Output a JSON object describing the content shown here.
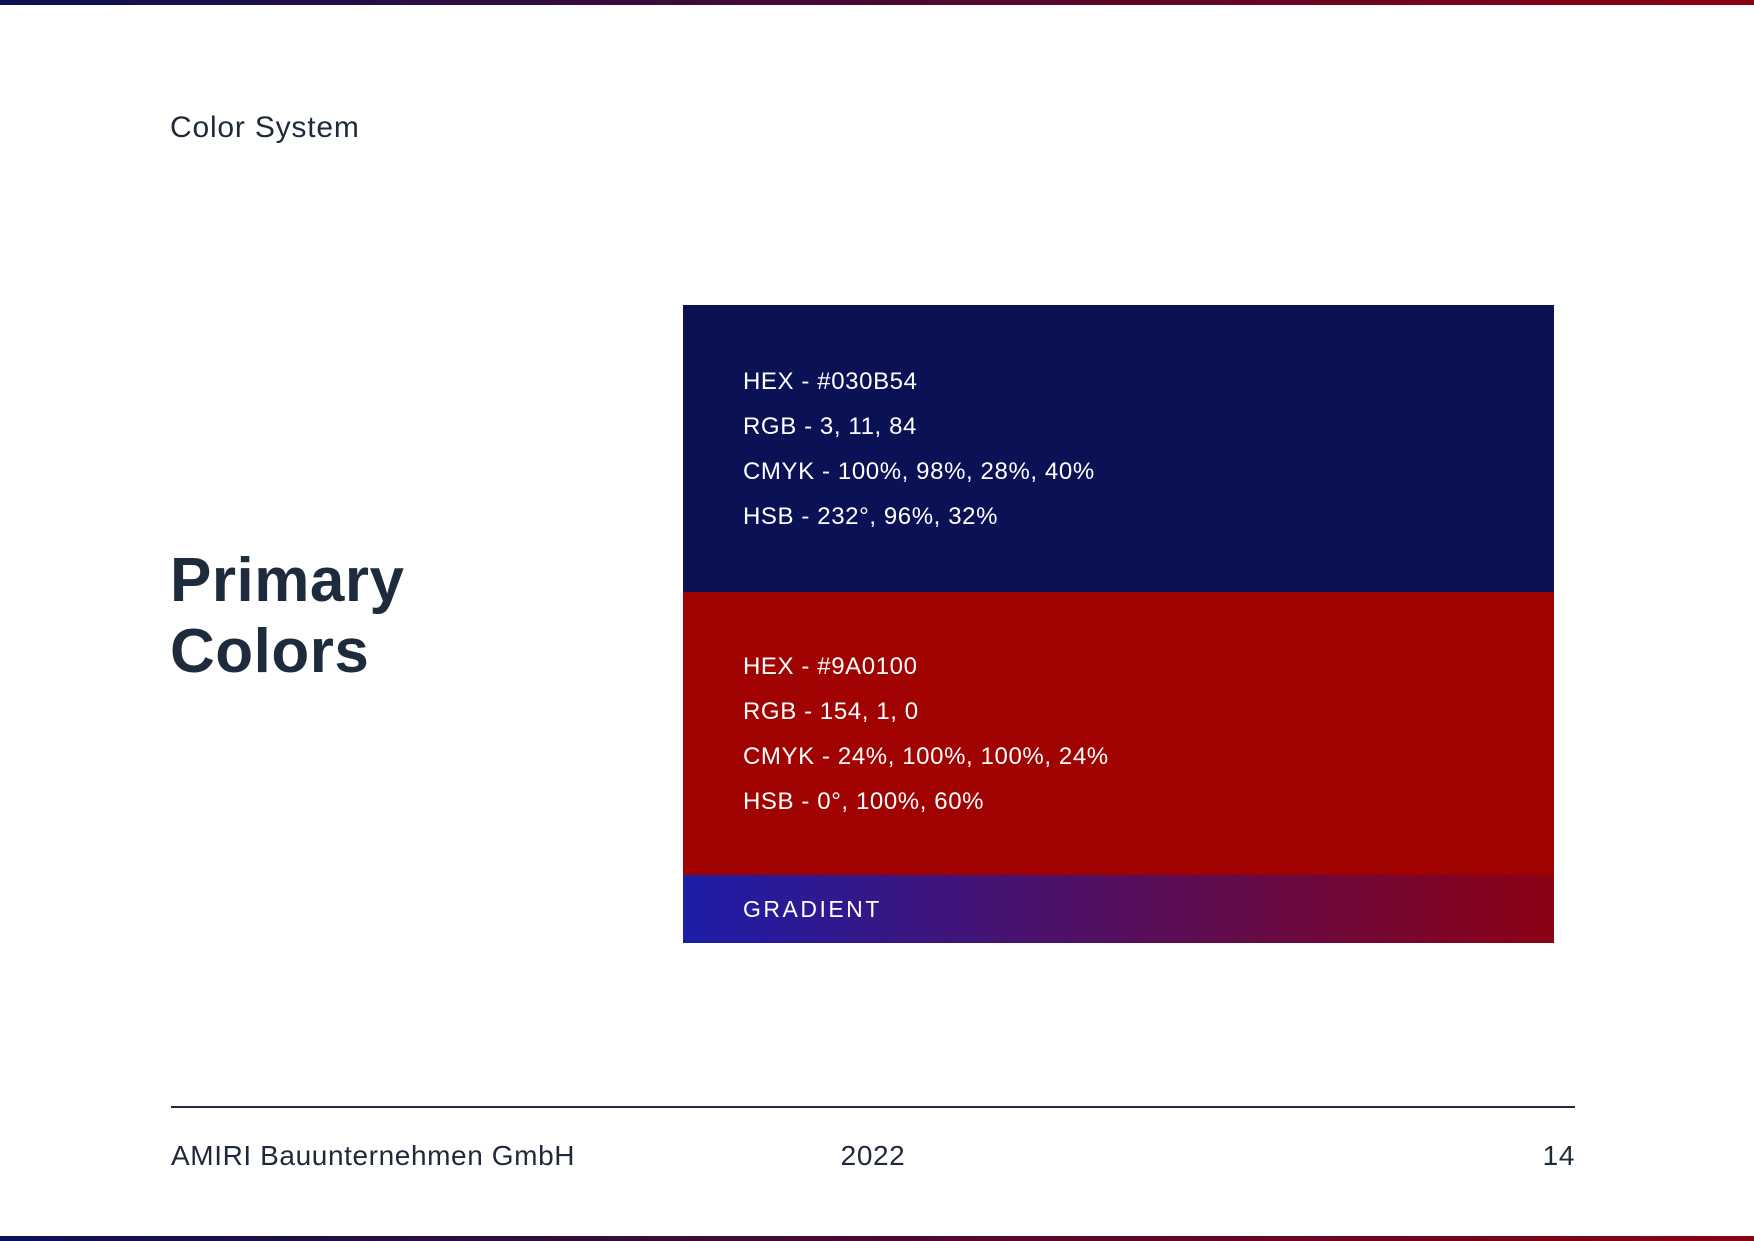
{
  "page": {
    "header_label": "Color System",
    "section_title": "Primary Colors"
  },
  "swatches": [
    {
      "fill": "#0A1155",
      "lines": [
        "HEX - #030B54",
        "RGB - 3, 11, 84",
        "CMYK - 100%, 98%, 28%, 40%",
        "HSB - 232°, 96%, 32%"
      ]
    },
    {
      "fill": "#A00301",
      "lines": [
        "HEX - #9A0100",
        "RGB - 154, 1, 0",
        "CMYK - 24%, 100%, 100%, 24%",
        "HSB - 0°, 100%, 60%"
      ]
    }
  ],
  "gradient": {
    "label": "GRADIENT",
    "from": "#1D1DA8",
    "to": "#8C0114"
  },
  "accent_bar": {
    "from": "#0B1153",
    "to": "#8C0211"
  },
  "footer": {
    "company": "AMIRI Bauunternehmen GmbH",
    "year": "2022",
    "page_number": "14"
  },
  "colors": {
    "heading_text": "#1D2B3D",
    "body_text": "#1E2A3A",
    "swatch_text": "#FFFFFF"
  }
}
